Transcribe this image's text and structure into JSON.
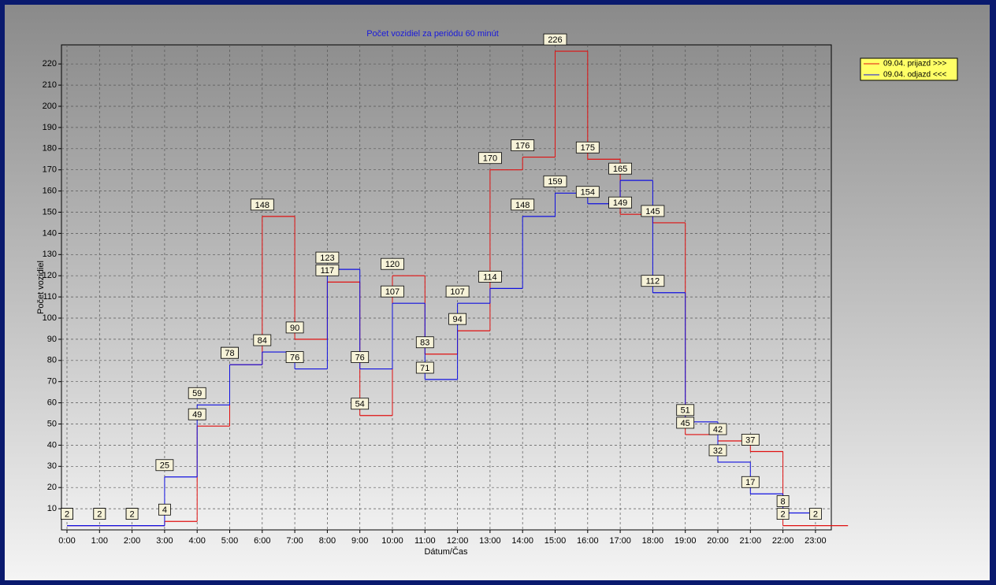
{
  "chart_data": {
    "type": "step",
    "title": "Počet vozidiel za periódu 60 minút",
    "x_label": "Dátum/Čas",
    "y_label": "Počet vozidiel",
    "categories": [
      "0:00",
      "1:00",
      "2:00",
      "3:00",
      "4:00",
      "5:00",
      "6:00",
      "7:00",
      "8:00",
      "9:00",
      "10:00",
      "11:00",
      "12:00",
      "13:00",
      "14:00",
      "15:00",
      "16:00",
      "17:00",
      "18:00",
      "19:00",
      "20:00",
      "21:00",
      "22:00",
      "23:00"
    ],
    "series": [
      {
        "name": "09.04.  prijazd >>>",
        "color": "#e01010",
        "values": [
          2,
          2,
          2,
          4,
          49,
          78,
          148,
          90,
          117,
          54,
          120,
          83,
          94,
          170,
          176,
          226,
          175,
          149,
          145,
          45,
          42,
          37,
          2,
          2
        ]
      },
      {
        "name": "09.04.  odjazd <<<",
        "color": "#1010e0",
        "values": [
          2,
          2,
          2,
          25,
          59,
          78,
          84,
          76,
          123,
          76,
          107,
          71,
          107,
          114,
          148,
          159,
          154,
          165,
          112,
          51,
          32,
          17,
          8,
          null
        ]
      }
    ],
    "ylim": [
      0,
      229
    ],
    "yticks": [
      10,
      20,
      30,
      40,
      50,
      60,
      70,
      80,
      90,
      100,
      110,
      120,
      130,
      140,
      150,
      160,
      170,
      180,
      190,
      200,
      210,
      220
    ],
    "grid": true
  }
}
